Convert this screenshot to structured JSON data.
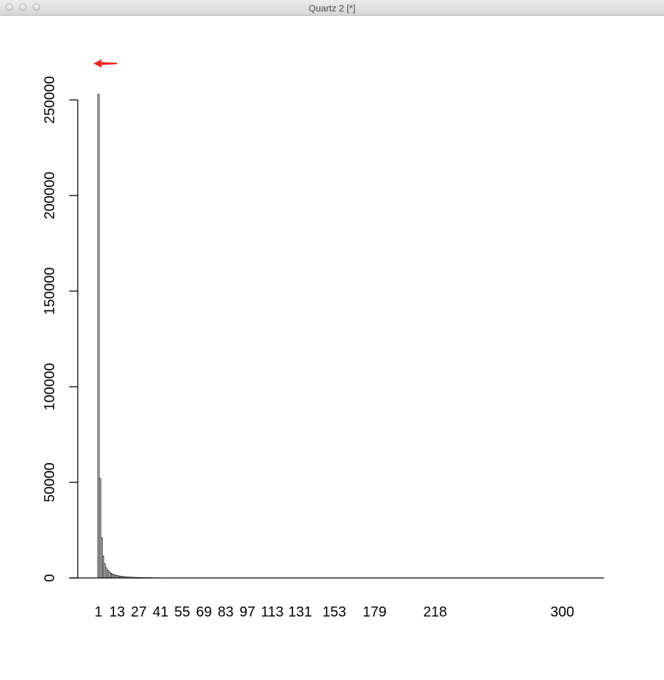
{
  "window": {
    "title": "Quartz 2 [*]"
  },
  "chart_data": {
    "type": "bar",
    "title": "",
    "xlabel": "",
    "ylabel": "",
    "ylim": [
      0,
      250000
    ],
    "y_ticks": [
      0,
      50000,
      100000,
      150000,
      200000,
      250000
    ],
    "bar_fill": "#c8c8c8",
    "bar_border": "#000000",
    "annotation_color": "#e8261f",
    "tick_labels": [
      "1",
      "13",
      "27",
      "41",
      "55",
      "69",
      "83",
      "97",
      "113",
      "131",
      "153",
      "179",
      "218",
      "300"
    ],
    "values": [
      253000,
      52000,
      21000,
      11500,
      7500,
      5300,
      4000,
      3100,
      2500,
      2050,
      1700,
      1450,
      1250,
      1080,
      950,
      840,
      750,
      670,
      600,
      545,
      495,
      450,
      410,
      375,
      345,
      318,
      293,
      271,
      251,
      233,
      217,
      202,
      189,
      177,
      166,
      156,
      147,
      138,
      130,
      123,
      116,
      110,
      104,
      99,
      94,
      89,
      85,
      81,
      77,
      74,
      71,
      68,
      65,
      62,
      60,
      57,
      55,
      53,
      51,
      49,
      47,
      46,
      44,
      42,
      41,
      40,
      38,
      37,
      36,
      35,
      34,
      33,
      32,
      31,
      30,
      29,
      28,
      27,
      26,
      26,
      25,
      24,
      24,
      23,
      22,
      22,
      21,
      21,
      20,
      20,
      19,
      19,
      18,
      18,
      17,
      17,
      16,
      16,
      16,
      15,
      15,
      15,
      14,
      14,
      14,
      13,
      13,
      13,
      12,
      12,
      12,
      12,
      11,
      11,
      11,
      11,
      10,
      10,
      10,
      10,
      10,
      9,
      9,
      9,
      9,
      9,
      9,
      8,
      8,
      8,
      8,
      8,
      8,
      8,
      7,
      7,
      7,
      7,
      7,
      7,
      7,
      7,
      6,
      6,
      6,
      6,
      6,
      6,
      6,
      6,
      6,
      6,
      5,
      5,
      5,
      5,
      5,
      5,
      5,
      5,
      5,
      5,
      5,
      5,
      5,
      4,
      4,
      4,
      4,
      4,
      4,
      4,
      4,
      4,
      4,
      4,
      4,
      4,
      4,
      4,
      4,
      4,
      3,
      3,
      3,
      3,
      3,
      3,
      3,
      3,
      3,
      3,
      3,
      3,
      3,
      3,
      3,
      3,
      3,
      3,
      3,
      3,
      3,
      3,
      3,
      3,
      3,
      2,
      2,
      2,
      2,
      2,
      2,
      2,
      2,
      2,
      2,
      2,
      2,
      2,
      2,
      2,
      2,
      2,
      2,
      2,
      2,
      2,
      2,
      2,
      2,
      2,
      2,
      2,
      2,
      2,
      2,
      2,
      2,
      2,
      2,
      2,
      2,
      1,
      1,
      1,
      1,
      1,
      1,
      1,
      1,
      1,
      1,
      1,
      1,
      1,
      1,
      1,
      1,
      1,
      1,
      1,
      1,
      1,
      1,
      1,
      1,
      1,
      1,
      1,
      1,
      1,
      1,
      1,
      1,
      1,
      1,
      1,
      1,
      1,
      1,
      1,
      1,
      1,
      1,
      1,
      1,
      1,
      1,
      1,
      1,
      1,
      1,
      1,
      1,
      1,
      1,
      1,
      1,
      1,
      1,
      1,
      1,
      1,
      1,
      1,
      1
    ]
  }
}
